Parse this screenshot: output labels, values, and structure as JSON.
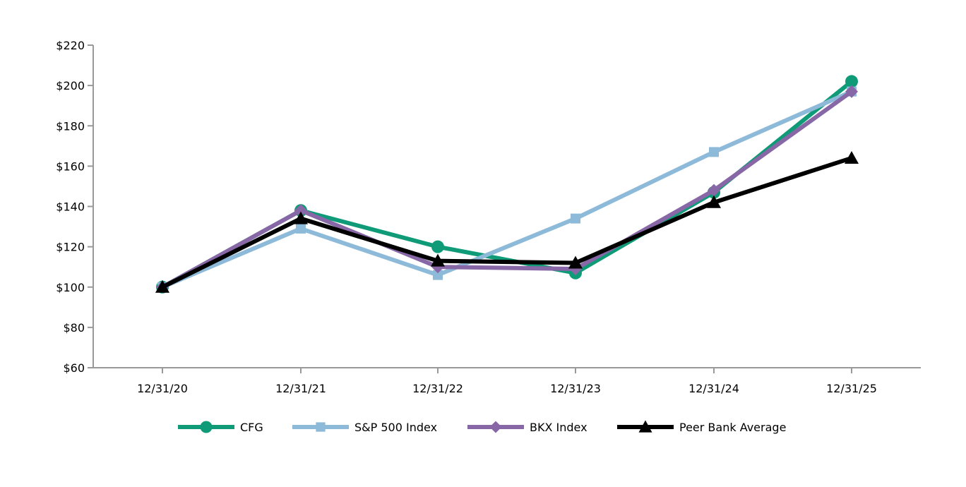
{
  "chart_data": {
    "type": "line",
    "title": "",
    "xlabel": "",
    "ylabel": "",
    "categories": [
      "12/31/20",
      "12/31/21",
      "12/31/22",
      "12/31/23",
      "12/31/24",
      "12/31/25"
    ],
    "ylim": [
      60,
      220
    ],
    "yticks": [
      60,
      80,
      100,
      120,
      140,
      160,
      180,
      200,
      220
    ],
    "ytick_labels": [
      "$60",
      "$80",
      "$100",
      "$120",
      "$140",
      "$160",
      "$180",
      "$200",
      "$220"
    ],
    "grid": false,
    "legend_position": "bottom",
    "series": [
      {
        "name": "CFG",
        "color": "#0f9b77",
        "marker": "circle",
        "values": [
          100,
          138,
          120,
          107,
          147,
          202
        ]
      },
      {
        "name": "S&P 500 Index",
        "color": "#8ebad9",
        "marker": "square",
        "values": [
          100,
          129,
          106,
          134,
          167,
          197
        ]
      },
      {
        "name": "BKX Index",
        "color": "#8767a6",
        "marker": "diamond",
        "values": [
          100,
          138,
          110,
          109,
          148,
          197
        ]
      },
      {
        "name": "Peer Bank Average",
        "color": "#000000",
        "marker": "triangle",
        "values": [
          100,
          134,
          113,
          112,
          142,
          164
        ]
      }
    ]
  }
}
